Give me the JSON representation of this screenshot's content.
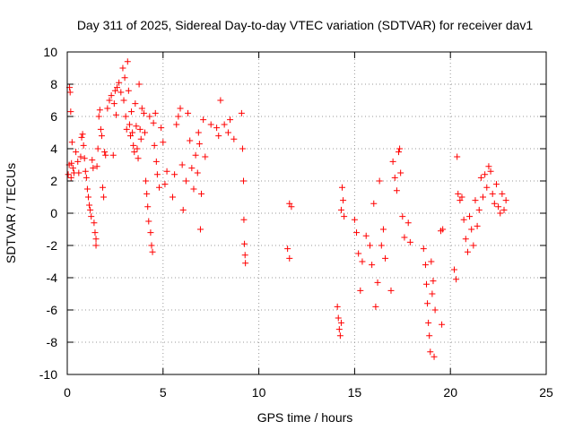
{
  "chart_data": {
    "type": "scatter",
    "title": "Day 311 of 2025, Sidereal Day-to-day VTEC variation (SDTVAR) for receiver dav1",
    "xlabel": "GPS time / hours",
    "ylabel": "SDTVAR / TECUs",
    "xlim": [
      0,
      25
    ],
    "ylim": [
      -10,
      10
    ],
    "x_ticks": [
      0,
      5,
      10,
      15,
      20,
      25
    ],
    "x_tick_labels": [
      "0",
      "5",
      "10",
      "15",
      "20",
      "25"
    ],
    "y_ticks": [
      -10,
      -8,
      -6,
      -4,
      -2,
      0,
      2,
      4,
      6,
      8,
      10
    ],
    "y_tick_labels": [
      "-10",
      "-8",
      "-6",
      "-4",
      "-2",
      "0",
      "2",
      "4",
      "6",
      "8",
      "10"
    ],
    "grid": true,
    "marker": "+",
    "marker_color": "#ff0000",
    "series": [
      {
        "name": "dav1",
        "points": [
          [
            0.05,
            2.4
          ],
          [
            0.1,
            3.0
          ],
          [
            0.12,
            7.8
          ],
          [
            0.15,
            7.5
          ],
          [
            0.18,
            6.3
          ],
          [
            0.2,
            2.2
          ],
          [
            0.22,
            3.1
          ],
          [
            0.25,
            4.4
          ],
          [
            0.3,
            2.8
          ],
          [
            0.35,
            2.5
          ],
          [
            0.45,
            3.8
          ],
          [
            0.55,
            3.2
          ],
          [
            0.6,
            2.5
          ],
          [
            0.7,
            3.5
          ],
          [
            0.75,
            4.7
          ],
          [
            0.8,
            4.9
          ],
          [
            0.85,
            4.2
          ],
          [
            0.9,
            3.4
          ],
          [
            0.95,
            2.6
          ],
          [
            1.0,
            2.2
          ],
          [
            1.05,
            1.5
          ],
          [
            1.1,
            1.0
          ],
          [
            1.15,
            0.5
          ],
          [
            1.2,
            0.2
          ],
          [
            1.25,
            -0.2
          ],
          [
            1.3,
            3.3
          ],
          [
            1.35,
            2.8
          ],
          [
            1.4,
            -0.6
          ],
          [
            1.45,
            -1.2
          ],
          [
            1.5,
            -2.0
          ],
          [
            1.5,
            -1.6
          ],
          [
            1.55,
            2.9
          ],
          [
            1.6,
            4.0
          ],
          [
            1.65,
            6.0
          ],
          [
            1.7,
            6.4
          ],
          [
            1.75,
            5.2
          ],
          [
            1.8,
            4.8
          ],
          [
            1.85,
            1.6
          ],
          [
            1.9,
            1.0
          ],
          [
            1.95,
            3.8
          ],
          [
            2.0,
            3.6
          ],
          [
            2.1,
            6.5
          ],
          [
            2.2,
            7.0
          ],
          [
            2.3,
            7.3
          ],
          [
            2.4,
            3.6
          ],
          [
            2.45,
            6.8
          ],
          [
            2.5,
            7.6
          ],
          [
            2.55,
            6.1
          ],
          [
            2.6,
            7.8
          ],
          [
            2.7,
            8.1
          ],
          [
            2.8,
            7.5
          ],
          [
            2.9,
            9.0
          ],
          [
            2.95,
            7.0
          ],
          [
            3.0,
            8.4
          ],
          [
            3.05,
            6.0
          ],
          [
            3.1,
            5.2
          ],
          [
            3.15,
            9.4
          ],
          [
            3.2,
            7.6
          ],
          [
            3.25,
            5.5
          ],
          [
            3.3,
            4.8
          ],
          [
            3.35,
            6.3
          ],
          [
            3.4,
            5.0
          ],
          [
            3.45,
            4.2
          ],
          [
            3.5,
            3.8
          ],
          [
            3.55,
            6.8
          ],
          [
            3.6,
            5.4
          ],
          [
            3.65,
            4.0
          ],
          [
            3.7,
            3.4
          ],
          [
            3.75,
            8.0
          ],
          [
            3.8,
            5.2
          ],
          [
            3.85,
            4.6
          ],
          [
            3.9,
            6.5
          ],
          [
            4.0,
            6.2
          ],
          [
            4.05,
            5.0
          ],
          [
            4.1,
            2.0
          ],
          [
            4.15,
            1.2
          ],
          [
            4.2,
            0.4
          ],
          [
            4.25,
            -0.5
          ],
          [
            4.3,
            6.0
          ],
          [
            4.35,
            -1.2
          ],
          [
            4.4,
            -2.0
          ],
          [
            4.45,
            -2.4
          ],
          [
            4.5,
            5.6
          ],
          [
            4.55,
            4.2
          ],
          [
            4.6,
            6.2
          ],
          [
            4.65,
            3.2
          ],
          [
            4.7,
            2.4
          ],
          [
            4.8,
            1.6
          ],
          [
            4.9,
            5.3
          ],
          [
            5.0,
            4.4
          ],
          [
            5.1,
            1.8
          ],
          [
            5.2,
            2.6
          ],
          [
            5.5,
            1.0
          ],
          [
            5.6,
            2.4
          ],
          [
            5.7,
            5.5
          ],
          [
            5.8,
            6.0
          ],
          [
            5.9,
            6.5
          ],
          [
            6.0,
            3.0
          ],
          [
            6.05,
            0.2
          ],
          [
            6.2,
            2.0
          ],
          [
            6.3,
            6.2
          ],
          [
            6.4,
            4.5
          ],
          [
            6.5,
            2.8
          ],
          [
            6.6,
            1.5
          ],
          [
            6.7,
            3.6
          ],
          [
            6.8,
            2.5
          ],
          [
            6.85,
            5.0
          ],
          [
            6.9,
            4.3
          ],
          [
            6.95,
            -1.0
          ],
          [
            7.0,
            1.2
          ],
          [
            7.1,
            5.8
          ],
          [
            7.2,
            3.5
          ],
          [
            7.5,
            5.5
          ],
          [
            7.8,
            5.3
          ],
          [
            7.9,
            4.8
          ],
          [
            8.0,
            7.0
          ],
          [
            8.2,
            5.5
          ],
          [
            8.4,
            5.0
          ],
          [
            8.5,
            5.8
          ],
          [
            8.7,
            4.6
          ],
          [
            9.1,
            6.2
          ],
          [
            9.15,
            4.0
          ],
          [
            9.2,
            2.0
          ],
          [
            9.22,
            -0.4
          ],
          [
            9.25,
            -1.9
          ],
          [
            9.28,
            -2.6
          ],
          [
            9.3,
            -3.1
          ],
          [
            11.5,
            -2.2
          ],
          [
            11.6,
            -2.8
          ],
          [
            11.6,
            0.6
          ],
          [
            11.7,
            0.4
          ],
          [
            14.1,
            -5.8
          ],
          [
            14.15,
            -6.5
          ],
          [
            14.2,
            -7.2
          ],
          [
            14.25,
            -7.6
          ],
          [
            14.3,
            -6.8
          ],
          [
            14.3,
            0.2
          ],
          [
            14.35,
            1.6
          ],
          [
            14.4,
            0.8
          ],
          [
            14.45,
            -0.2
          ],
          [
            15.0,
            -0.4
          ],
          [
            15.1,
            -1.2
          ],
          [
            15.2,
            -2.5
          ],
          [
            15.3,
            -4.8
          ],
          [
            15.4,
            -3.0
          ],
          [
            15.6,
            -1.4
          ],
          [
            15.8,
            -2.0
          ],
          [
            15.9,
            -3.2
          ],
          [
            16.0,
            0.6
          ],
          [
            16.1,
            -5.8
          ],
          [
            16.2,
            -4.3
          ],
          [
            16.3,
            2.0
          ],
          [
            16.4,
            -2.0
          ],
          [
            16.5,
            -1.0
          ],
          [
            16.6,
            -2.8
          ],
          [
            16.9,
            -4.8
          ],
          [
            17.0,
            3.2
          ],
          [
            17.1,
            2.2
          ],
          [
            17.2,
            1.4
          ],
          [
            17.3,
            3.8
          ],
          [
            17.35,
            4.0
          ],
          [
            17.4,
            2.5
          ],
          [
            17.5,
            -0.2
          ],
          [
            17.6,
            -1.5
          ],
          [
            17.8,
            -0.6
          ],
          [
            17.9,
            -1.8
          ],
          [
            18.6,
            -2.2
          ],
          [
            18.7,
            -3.2
          ],
          [
            18.75,
            -4.4
          ],
          [
            18.8,
            -5.6
          ],
          [
            18.85,
            -6.8
          ],
          [
            18.9,
            -7.6
          ],
          [
            18.95,
            -8.6
          ],
          [
            19.0,
            -3.0
          ],
          [
            19.05,
            -5.0
          ],
          [
            19.1,
            -4.2
          ],
          [
            19.15,
            -8.9
          ],
          [
            19.2,
            -6.0
          ],
          [
            19.5,
            -1.1
          ],
          [
            19.55,
            -6.9
          ],
          [
            19.6,
            -1.0
          ],
          [
            20.2,
            -3.5
          ],
          [
            20.3,
            -4.1
          ],
          [
            20.35,
            3.5
          ],
          [
            20.4,
            1.2
          ],
          [
            20.5,
            0.8
          ],
          [
            20.6,
            1.0
          ],
          [
            20.7,
            -0.4
          ],
          [
            20.8,
            -1.6
          ],
          [
            20.9,
            -2.4
          ],
          [
            21.0,
            -0.2
          ],
          [
            21.1,
            -1.0
          ],
          [
            21.2,
            -2.0
          ],
          [
            21.3,
            0.8
          ],
          [
            21.4,
            -0.8
          ],
          [
            21.5,
            0.2
          ],
          [
            21.6,
            2.2
          ],
          [
            21.7,
            1.0
          ],
          [
            21.8,
            2.4
          ],
          [
            21.9,
            1.6
          ],
          [
            22.0,
            2.9
          ],
          [
            22.1,
            2.6
          ],
          [
            22.2,
            1.2
          ],
          [
            22.3,
            0.6
          ],
          [
            22.4,
            1.8
          ],
          [
            22.5,
            0.4
          ],
          [
            22.6,
            0.0
          ],
          [
            22.7,
            1.2
          ],
          [
            22.8,
            0.2
          ],
          [
            22.9,
            0.8
          ]
        ]
      }
    ]
  }
}
